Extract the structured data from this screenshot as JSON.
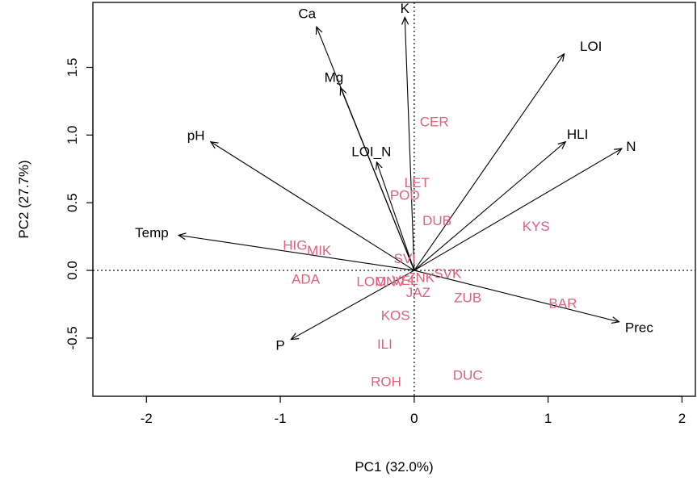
{
  "chart_data": {
    "type": "scatter",
    "title": "",
    "xlabel": "PC1 (32.0%)",
    "ylabel": "PC2 (27.7%)",
    "xlim": [
      -2.4,
      2.1
    ],
    "ylim": [
      -0.93,
      1.98
    ],
    "x_ticks": [
      -2,
      -1,
      0,
      1,
      2
    ],
    "y_ticks": [
      -0.5,
      0.0,
      0.5,
      1.0,
      1.5
    ],
    "x_tick_labels": [
      "-2",
      "-1",
      "0",
      "1",
      "2"
    ],
    "y_tick_labels": [
      "-0.5",
      "0.0",
      "0.5",
      "1.0",
      "1.5"
    ],
    "reference_lines": {
      "x": 0,
      "y": 0,
      "style": "dotted"
    },
    "grid": false,
    "colors": {
      "sites": "#e0607e",
      "arrows": "#000000"
    },
    "sites": [
      {
        "label": "CER",
        "x": 0.15,
        "y": 1.09
      },
      {
        "label": "LET",
        "x": 0.02,
        "y": 0.64
      },
      {
        "label": "POD",
        "x": -0.07,
        "y": 0.55
      },
      {
        "label": "DUB",
        "x": 0.17,
        "y": 0.36
      },
      {
        "label": "KYS",
        "x": 0.91,
        "y": 0.32
      },
      {
        "label": "HIG",
        "x": -0.89,
        "y": 0.18
      },
      {
        "label": "MIK",
        "x": -0.71,
        "y": 0.14
      },
      {
        "label": "SVI",
        "x": -0.07,
        "y": 0.08
      },
      {
        "label": "SVK",
        "x": 0.25,
        "y": -0.03
      },
      {
        "label": "ADA",
        "x": -0.81,
        "y": -0.07
      },
      {
        "label": "LOM",
        "x": -0.32,
        "y": -0.09
      },
      {
        "label": "ONV",
        "x": -0.18,
        "y": -0.09
      },
      {
        "label": "VEL",
        "x": -0.07,
        "y": -0.08
      },
      {
        "label": "ZNK",
        "x": 0.05,
        "y": -0.06
      },
      {
        "label": "JAZ",
        "x": 0.03,
        "y": -0.17
      },
      {
        "label": "ZUB",
        "x": 0.4,
        "y": -0.21
      },
      {
        "label": "BAR",
        "x": 1.11,
        "y": -0.25
      },
      {
        "label": "KOS",
        "x": -0.14,
        "y": -0.34
      },
      {
        "label": "ILI",
        "x": -0.22,
        "y": -0.55
      },
      {
        "label": "DUC",
        "x": 0.4,
        "y": -0.78
      },
      {
        "label": "ROH",
        "x": -0.21,
        "y": -0.83
      }
    ],
    "variables": [
      {
        "label": "Ca",
        "x": -0.73,
        "y": 1.8,
        "label_x": -0.8,
        "label_y": 1.89
      },
      {
        "label": "K",
        "x": -0.07,
        "y": 1.87,
        "label_x": -0.07,
        "label_y": 1.93
      },
      {
        "label": "LOI",
        "x": 1.12,
        "y": 1.6,
        "label_x": 1.32,
        "label_y": 1.65
      },
      {
        "label": "Mg",
        "x": -0.55,
        "y": 1.35,
        "label_x": -0.6,
        "label_y": 1.42
      },
      {
        "label": "pH",
        "x": -1.52,
        "y": 0.95,
        "label_x": -1.63,
        "label_y": 0.99
      },
      {
        "label": "LOI_N",
        "x": -0.28,
        "y": 0.8,
        "label_x": -0.32,
        "label_y": 0.87
      },
      {
        "label": "HLI",
        "x": 1.13,
        "y": 0.95,
        "label_x": 1.22,
        "label_y": 1.0
      },
      {
        "label": "N",
        "x": 1.55,
        "y": 0.9,
        "label_x": 1.62,
        "label_y": 0.91
      },
      {
        "label": "Temp",
        "x": -1.76,
        "y": 0.26,
        "label_x": -1.96,
        "label_y": 0.27
      },
      {
        "label": "Prec",
        "x": 1.53,
        "y": -0.38,
        "label_x": 1.68,
        "label_y": -0.43
      },
      {
        "label": "P",
        "x": -0.92,
        "y": -0.51,
        "label_x": -1.0,
        "label_y": -0.56
      }
    ]
  }
}
